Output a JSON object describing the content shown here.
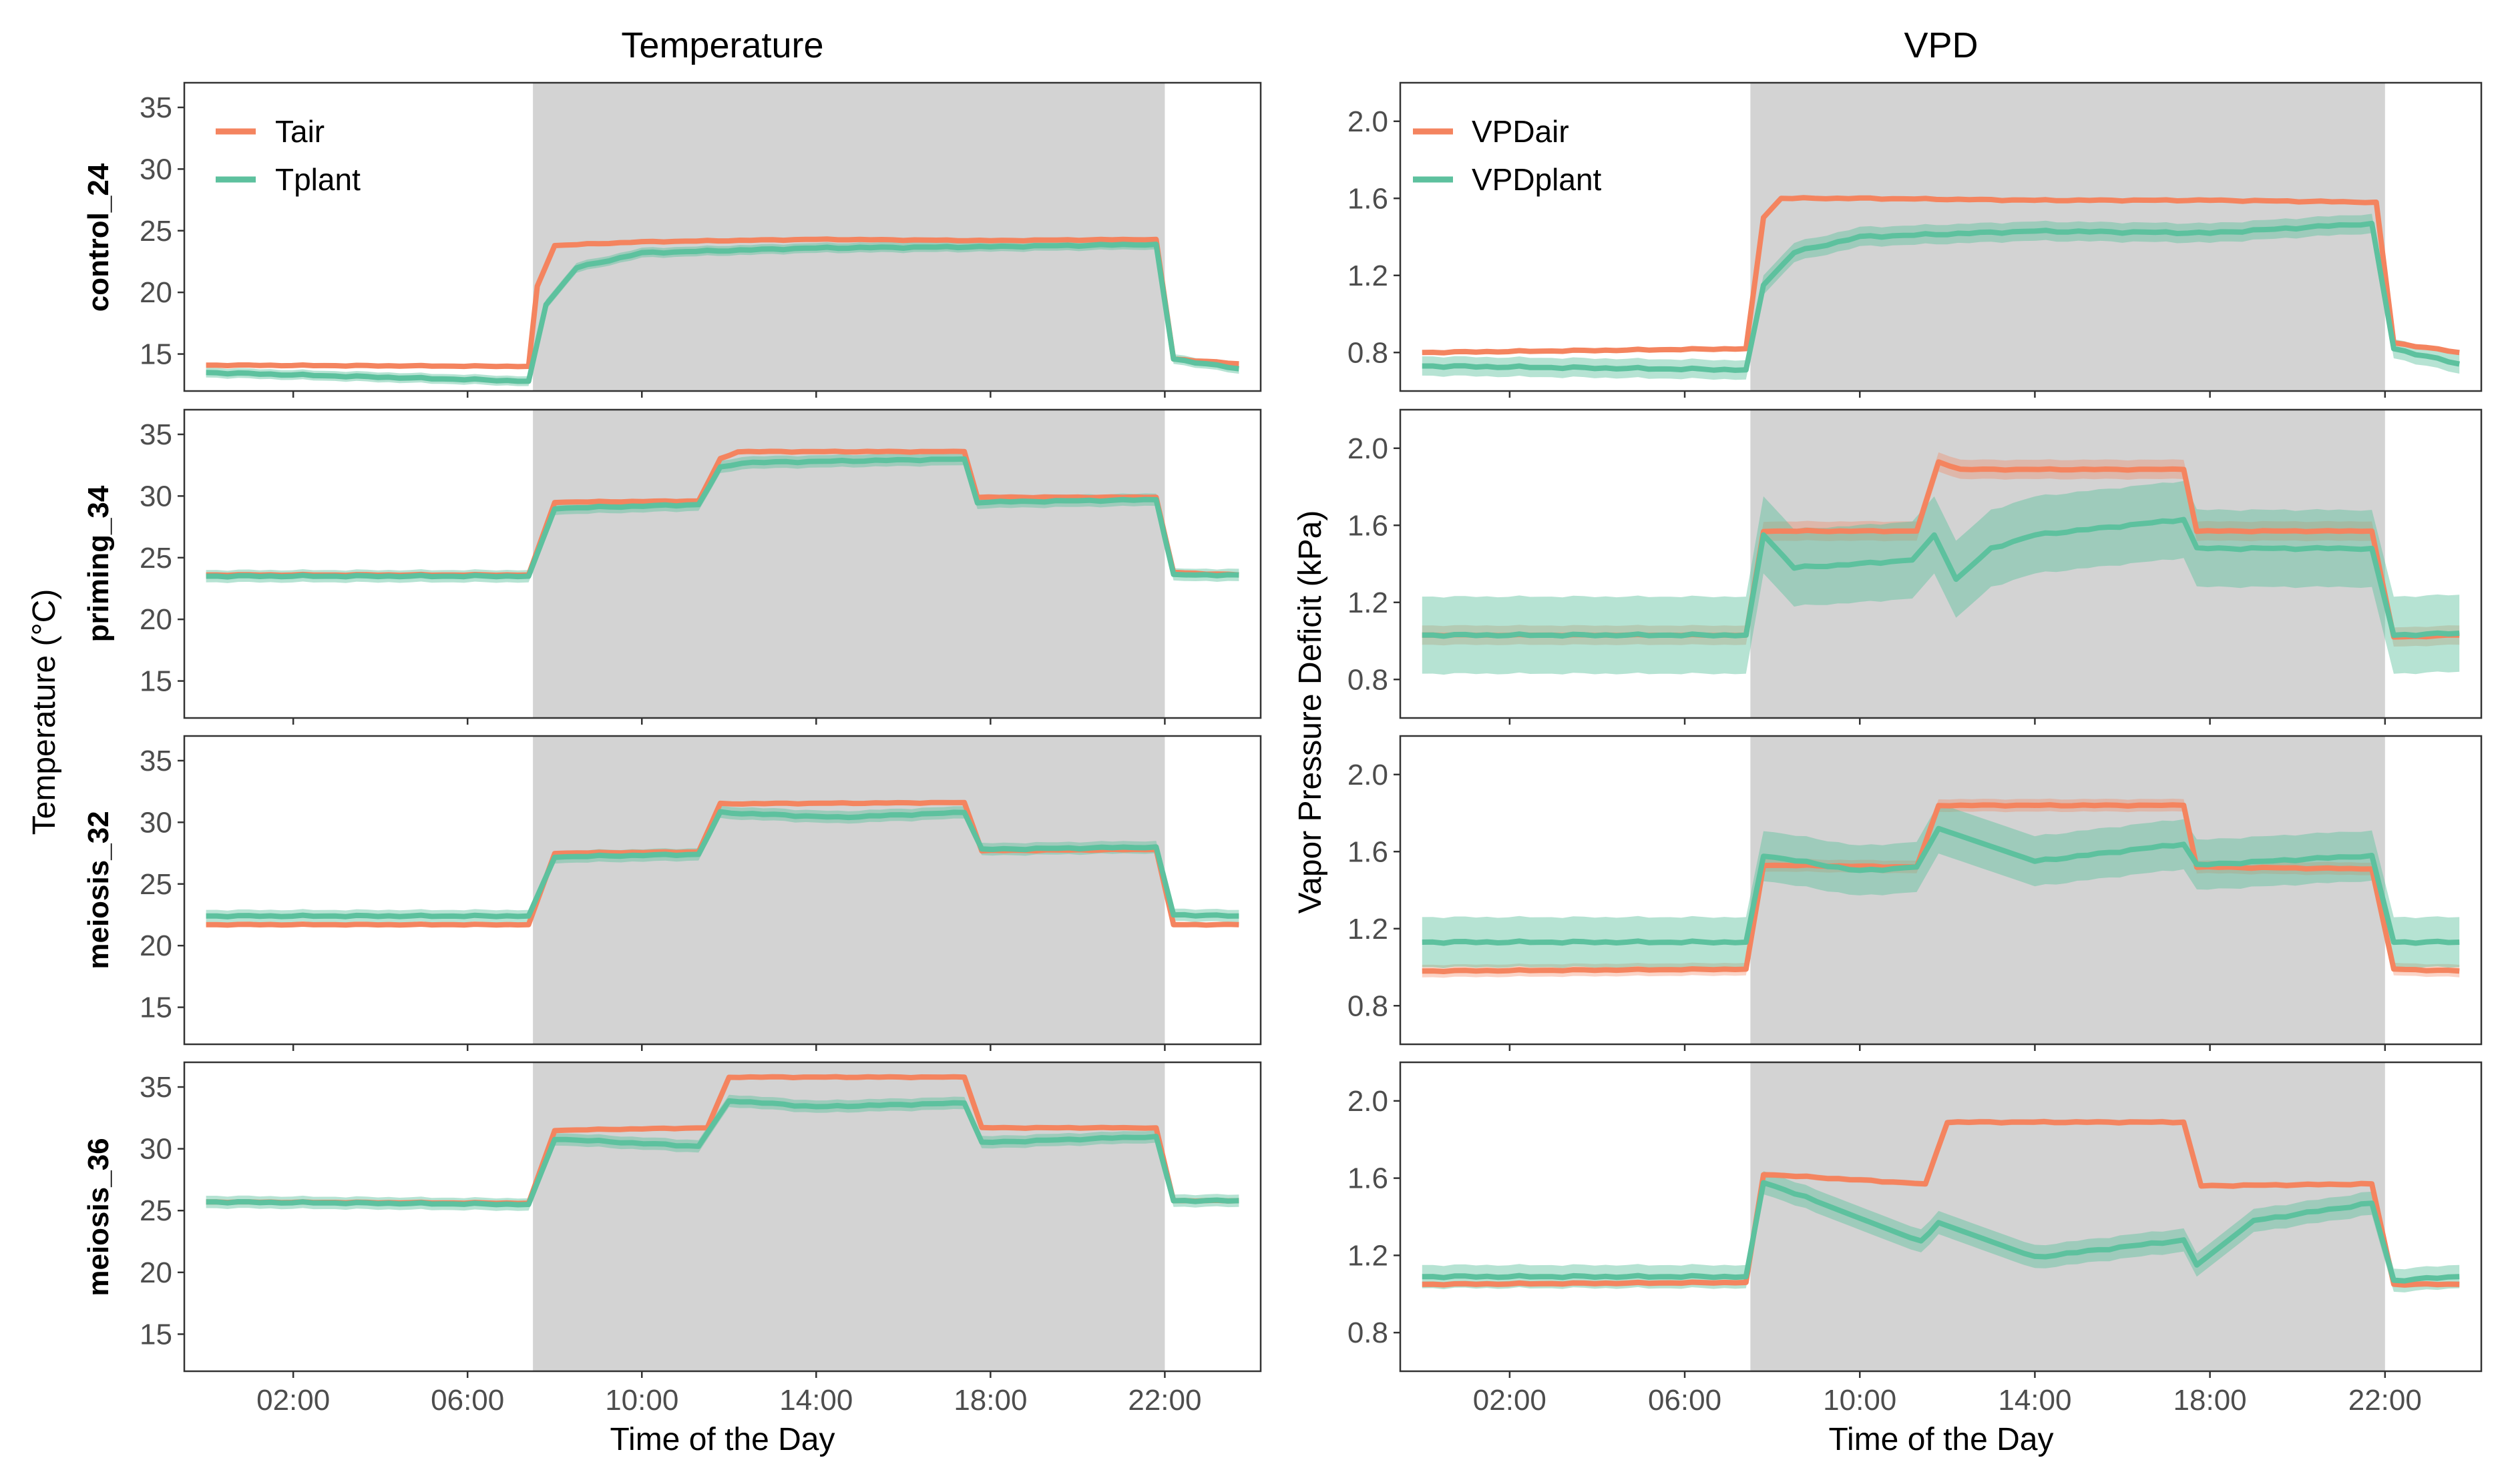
{
  "column_titles": [
    "Temperature",
    "VPD"
  ],
  "row_labels": [
    "control_24",
    "priming_34",
    "meiosis_32",
    "meiosis_36"
  ],
  "x_axis_label": "Time of the Day",
  "x_tick_labels": [
    "02:00",
    "06:00",
    "10:00",
    "14:00",
    "18:00",
    "22:00"
  ],
  "y_axis_label_temperature": "Temperature (°C)",
  "y_axis_label_vpd": "Vapor Pressure Deficit (kPa)",
  "legend_temperature": [
    "Tair",
    "Tplant"
  ],
  "legend_vpd": [
    "VPDair",
    "VPDplant"
  ],
  "temperature_tick_labels": [
    "15",
    "20",
    "25",
    "30",
    "35"
  ],
  "vpd_tick_labels": [
    "0.8",
    "1.2",
    "1.6",
    "2.0"
  ],
  "colors": {
    "air": "#F4845F",
    "plant": "#5DC19E",
    "night_shade": "#D3D3D3"
  },
  "chart_data": {
    "type": "line",
    "facet_layout": "4 rows x 2 columns",
    "x_unit": "hour of day",
    "x_range_hours": [
      -0.5,
      24.2
    ],
    "shaded_period_hours": [
      7.5,
      22.0
    ],
    "temperature_ylim": [
      12,
      37
    ],
    "vpd_ylim": [
      0.6,
      2.2
    ],
    "legend_position": "top-left",
    "grid": false,
    "series": {
      "temperature": [
        {
          "row": "control_24",
          "Tair": [
            [
              0,
              14.1
            ],
            [
              7.4,
              14.0
            ],
            [
              7.6,
              20.5
            ],
            [
              8,
              23.8
            ],
            [
              10,
              24.1
            ],
            [
              14,
              24.3
            ],
            [
              18,
              24.2
            ],
            [
              21.8,
              24.3
            ],
            [
              22.2,
              14.6
            ],
            [
              23.7,
              14.2
            ]
          ],
          "Tplant": [
            [
              0,
              13.5
            ],
            [
              7.4,
              12.8
            ],
            [
              7.8,
              19
            ],
            [
              8.5,
              22
            ],
            [
              10,
              23.2
            ],
            [
              14,
              23.6
            ],
            [
              18,
              23.7
            ],
            [
              21.8,
              23.9
            ],
            [
              22.2,
              14.6
            ],
            [
              23.7,
              13.8
            ]
          ],
          "Tplant_band": 0.4
        },
        {
          "row": "priming_34",
          "Tair": [
            [
              0,
              23.6
            ],
            [
              7.4,
              23.6
            ],
            [
              8,
              29.5
            ],
            [
              11.3,
              29.6
            ],
            [
              11.8,
              33.0
            ],
            [
              12.2,
              33.6
            ],
            [
              17.4,
              33.6
            ],
            [
              17.7,
              29.9
            ],
            [
              21.8,
              29.9
            ],
            [
              22.2,
              23.8
            ],
            [
              23.7,
              23.6
            ]
          ],
          "Tplant": [
            [
              0,
              23.5
            ],
            [
              7.4,
              23.5
            ],
            [
              8,
              29.0
            ],
            [
              11.3,
              29.3
            ],
            [
              11.8,
              32.3
            ],
            [
              12.3,
              32.7
            ],
            [
              17.4,
              33.0
            ],
            [
              17.7,
              29.5
            ],
            [
              21.8,
              29.7
            ],
            [
              22.2,
              23.6
            ],
            [
              23.7,
              23.6
            ]
          ],
          "Tplant_band": 0.5
        },
        {
          "row": "meiosis_32",
          "Tair": [
            [
              0,
              21.7
            ],
            [
              7.4,
              21.7
            ],
            [
              8,
              27.5
            ],
            [
              11.3,
              27.6
            ],
            [
              11.8,
              31.5
            ],
            [
              17.4,
              31.6
            ],
            [
              17.8,
              27.7
            ],
            [
              21.8,
              27.8
            ],
            [
              22.2,
              21.7
            ],
            [
              23.7,
              21.7
            ]
          ],
          "Tplant": [
            [
              0,
              22.4
            ],
            [
              7.4,
              22.4
            ],
            [
              8,
              27.2
            ],
            [
              11.3,
              27.4
            ],
            [
              11.8,
              30.8
            ],
            [
              14.5,
              30.4
            ],
            [
              17.4,
              30.8
            ],
            [
              17.8,
              27.8
            ],
            [
              21.8,
              28.0
            ],
            [
              22.2,
              22.5
            ],
            [
              23.7,
              22.4
            ]
          ],
          "Tplant_band": 0.5
        },
        {
          "row": "meiosis_36",
          "Tair": [
            [
              0,
              25.7
            ],
            [
              7.4,
              25.6
            ],
            [
              8,
              31.5
            ],
            [
              11.5,
              31.7
            ],
            [
              12,
              35.8
            ],
            [
              17.4,
              35.8
            ],
            [
              17.8,
              31.7
            ],
            [
              21.8,
              31.7
            ],
            [
              22.2,
              25.8
            ],
            [
              23.7,
              25.8
            ]
          ],
          "Tplant": [
            [
              0,
              25.7
            ],
            [
              7.4,
              25.5
            ],
            [
              8,
              30.8
            ],
            [
              11.3,
              30.2
            ],
            [
              12,
              33.9
            ],
            [
              14,
              33.4
            ],
            [
              17.4,
              33.7
            ],
            [
              17.8,
              30.5
            ],
            [
              21.8,
              31.0
            ],
            [
              22.2,
              25.8
            ],
            [
              23.7,
              25.8
            ]
          ],
          "Tplant_band": 0.5
        }
      ],
      "vpd": [
        {
          "row": "control_24",
          "VPDair": [
            [
              0,
              0.8
            ],
            [
              7.4,
              0.82
            ],
            [
              7.8,
              1.5
            ],
            [
              8.2,
              1.6
            ],
            [
              10,
              1.6
            ],
            [
              14,
              1.59
            ],
            [
              18,
              1.59
            ],
            [
              21.8,
              1.58
            ],
            [
              22.2,
              0.85
            ],
            [
              23.7,
              0.8
            ]
          ],
          "VPDplant": [
            [
              0,
              0.73
            ],
            [
              7.4,
              0.71
            ],
            [
              7.8,
              1.15
            ],
            [
              8.5,
              1.32
            ],
            [
              10,
              1.4
            ],
            [
              14,
              1.43
            ],
            [
              18,
              1.42
            ],
            [
              21.7,
              1.47
            ],
            [
              22.2,
              0.82
            ],
            [
              23.7,
              0.74
            ]
          ],
          "VPDplant_band": 0.05
        },
        {
          "row": "priming_34",
          "VPDair": [
            [
              0,
              1.03
            ],
            [
              7.4,
              1.03
            ],
            [
              7.8,
              1.57
            ],
            [
              11.3,
              1.57
            ],
            [
              11.8,
              1.93
            ],
            [
              12.3,
              1.89
            ],
            [
              17.4,
              1.89
            ],
            [
              17.7,
              1.57
            ],
            [
              21.7,
              1.57
            ],
            [
              22.2,
              1.02
            ],
            [
              23.7,
              1.03
            ]
          ],
          "VPDplant": [
            [
              0,
              1.03
            ],
            [
              7.4,
              1.03
            ],
            [
              7.8,
              1.55
            ],
            [
              8.5,
              1.38
            ],
            [
              10,
              1.4
            ],
            [
              11.2,
              1.42
            ],
            [
              11.7,
              1.55
            ],
            [
              12.2,
              1.32
            ],
            [
              13,
              1.48
            ],
            [
              14,
              1.55
            ],
            [
              17.4,
              1.63
            ],
            [
              17.7,
              1.48
            ],
            [
              21.7,
              1.48
            ],
            [
              22.2,
              1.03
            ],
            [
              23.7,
              1.04
            ]
          ],
          "VPDplant_band": 0.2
        },
        {
          "row": "meiosis_32",
          "VPDair": [
            [
              0,
              0.98
            ],
            [
              7.4,
              0.99
            ],
            [
              7.8,
              1.53
            ],
            [
              11.3,
              1.52
            ],
            [
              11.8,
              1.84
            ],
            [
              17.4,
              1.84
            ],
            [
              17.7,
              1.52
            ],
            [
              21.7,
              1.51
            ],
            [
              22.2,
              0.99
            ],
            [
              23.7,
              0.98
            ]
          ],
          "VPDplant": [
            [
              0,
              1.13
            ],
            [
              7.4,
              1.13
            ],
            [
              7.8,
              1.58
            ],
            [
              10,
              1.5
            ],
            [
              11.3,
              1.52
            ],
            [
              11.8,
              1.72
            ],
            [
              14,
              1.55
            ],
            [
              17.4,
              1.64
            ],
            [
              17.7,
              1.53
            ],
            [
              21.7,
              1.58
            ],
            [
              22.2,
              1.13
            ],
            [
              23.7,
              1.13
            ]
          ],
          "VPDplant_band": 0.13
        },
        {
          "row": "meiosis_36",
          "VPDair": [
            [
              0,
              1.05
            ],
            [
              7.4,
              1.06
            ],
            [
              7.8,
              1.62
            ],
            [
              11.5,
              1.57
            ],
            [
              12,
              1.89
            ],
            [
              17.4,
              1.89
            ],
            [
              17.8,
              1.56
            ],
            [
              21.7,
              1.57
            ],
            [
              22.2,
              1.05
            ],
            [
              23.7,
              1.05
            ]
          ],
          "VPDplant": [
            [
              0,
              1.09
            ],
            [
              7.4,
              1.09
            ],
            [
              7.8,
              1.58
            ],
            [
              9,
              1.48
            ],
            [
              11.4,
              1.27
            ],
            [
              11.8,
              1.37
            ],
            [
              14,
              1.19
            ],
            [
              17.4,
              1.28
            ],
            [
              17.7,
              1.15
            ],
            [
              19,
              1.38
            ],
            [
              21.7,
              1.47
            ],
            [
              22.2,
              1.07
            ],
            [
              23.7,
              1.09
            ]
          ],
          "VPDplant_band": 0.06
        }
      ]
    }
  }
}
